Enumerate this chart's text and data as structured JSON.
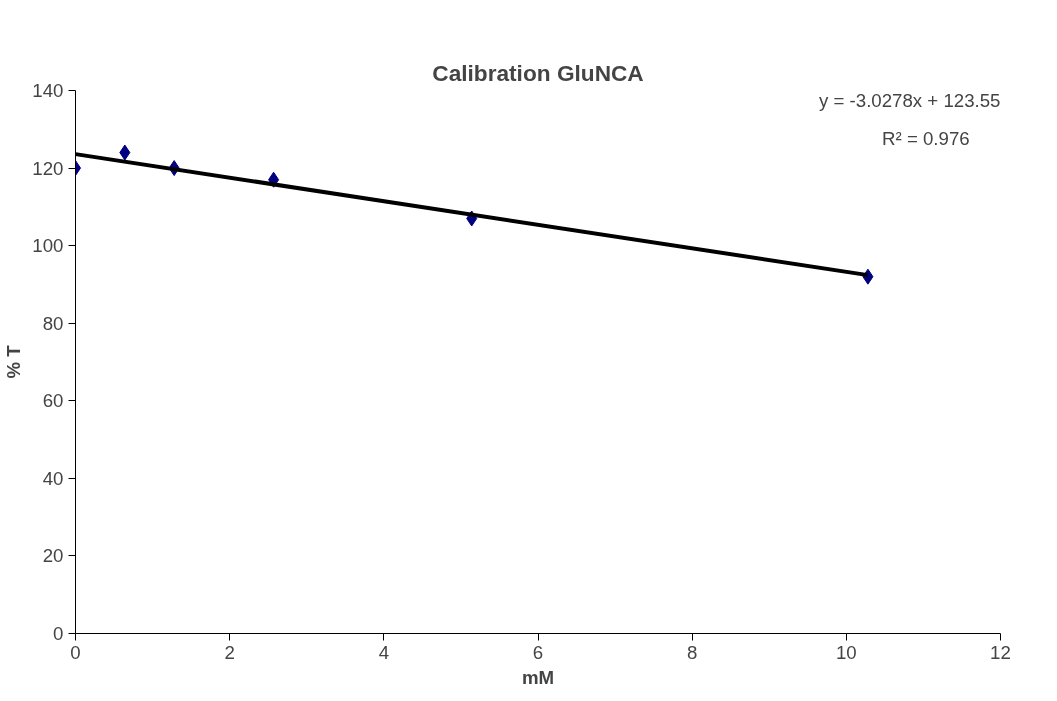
{
  "chart_data": {
    "type": "scatter",
    "title": "Calibration GluNCA",
    "xlabel": "mM",
    "ylabel": "% T",
    "xlim": [
      0,
      12
    ],
    "xticks": [
      0,
      2,
      4,
      6,
      8,
      10,
      12
    ],
    "ylim": [
      0,
      140
    ],
    "yticks": [
      0,
      20,
      40,
      60,
      80,
      100,
      120,
      140
    ],
    "grid": false,
    "marker": "diamond",
    "series": [
      {
        "color": "#000080",
        "x": [
          0,
          0.64,
          1.28,
          2.57,
          5.14,
          10.28
        ],
        "values": [
          120,
          124,
          120,
          117,
          107,
          92
        ]
      },
      {
        "type": "line",
        "color": "#000000",
        "x": [
          0,
          10.28
        ],
        "values": [
          123.6,
          92.4
        ],
        "line_style": "solid",
        "marker": "none"
      }
    ],
    "annotations": [
      "y = -3.0278x + 123.55",
      "R² = 0.976"
    ]
  }
}
